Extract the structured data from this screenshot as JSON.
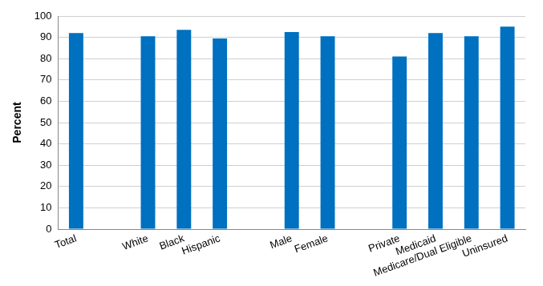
{
  "chart_data": {
    "type": "bar",
    "y_label": "Percent",
    "categories": [
      "Total",
      null,
      "White",
      "Black",
      "Hispanic",
      null,
      "Male",
      "Female",
      null,
      "Private",
      "Medicaid",
      "Medicare/Dual Eligible",
      "Uninsured"
    ],
    "values": [
      92,
      null,
      90.5,
      93.5,
      89.5,
      null,
      92.5,
      90.5,
      null,
      81,
      92,
      90.5,
      95
    ],
    "color": "#0070c0",
    "ylim": [
      0,
      100
    ],
    "yticks": [
      0,
      10,
      20,
      30,
      40,
      50,
      60,
      70,
      80,
      90,
      100
    ],
    "grid": true
  }
}
